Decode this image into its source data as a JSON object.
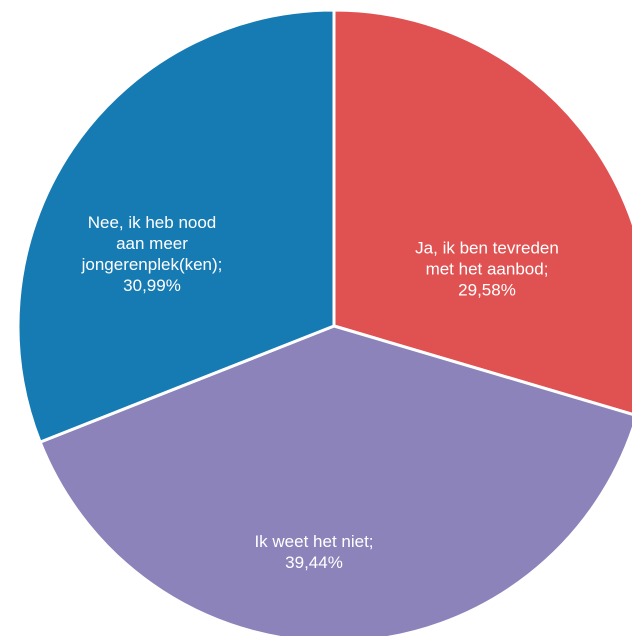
{
  "chart_data": {
    "type": "pie",
    "title": "",
    "slices": [
      {
        "label": "Ja, ik ben tevreden met het aanbod",
        "value": 29.58,
        "value_text": "29,58%",
        "color": "#E05252",
        "label_lines": [
          "Ja, ik ben tevreden",
          "met het aanbod;",
          "29,58%"
        ]
      },
      {
        "label": "Ik weet het niet",
        "value": 39.44,
        "value_text": "39,44%",
        "color": "#8B83BA",
        "label_lines": [
          "Ik weet het niet;",
          "39,44%"
        ]
      },
      {
        "label": "Nee, ik heb nood aan meer jongerenplek(ken)",
        "value": 30.99,
        "value_text": "30,99%",
        "color": "#177BB3",
        "label_lines": [
          "Nee, ik heb nood",
          "aan meer",
          "jongerenplek(ken);",
          "30,99%"
        ]
      }
    ],
    "start_angle": "12 o'clock",
    "direction": "clockwise",
    "legend": "none"
  }
}
